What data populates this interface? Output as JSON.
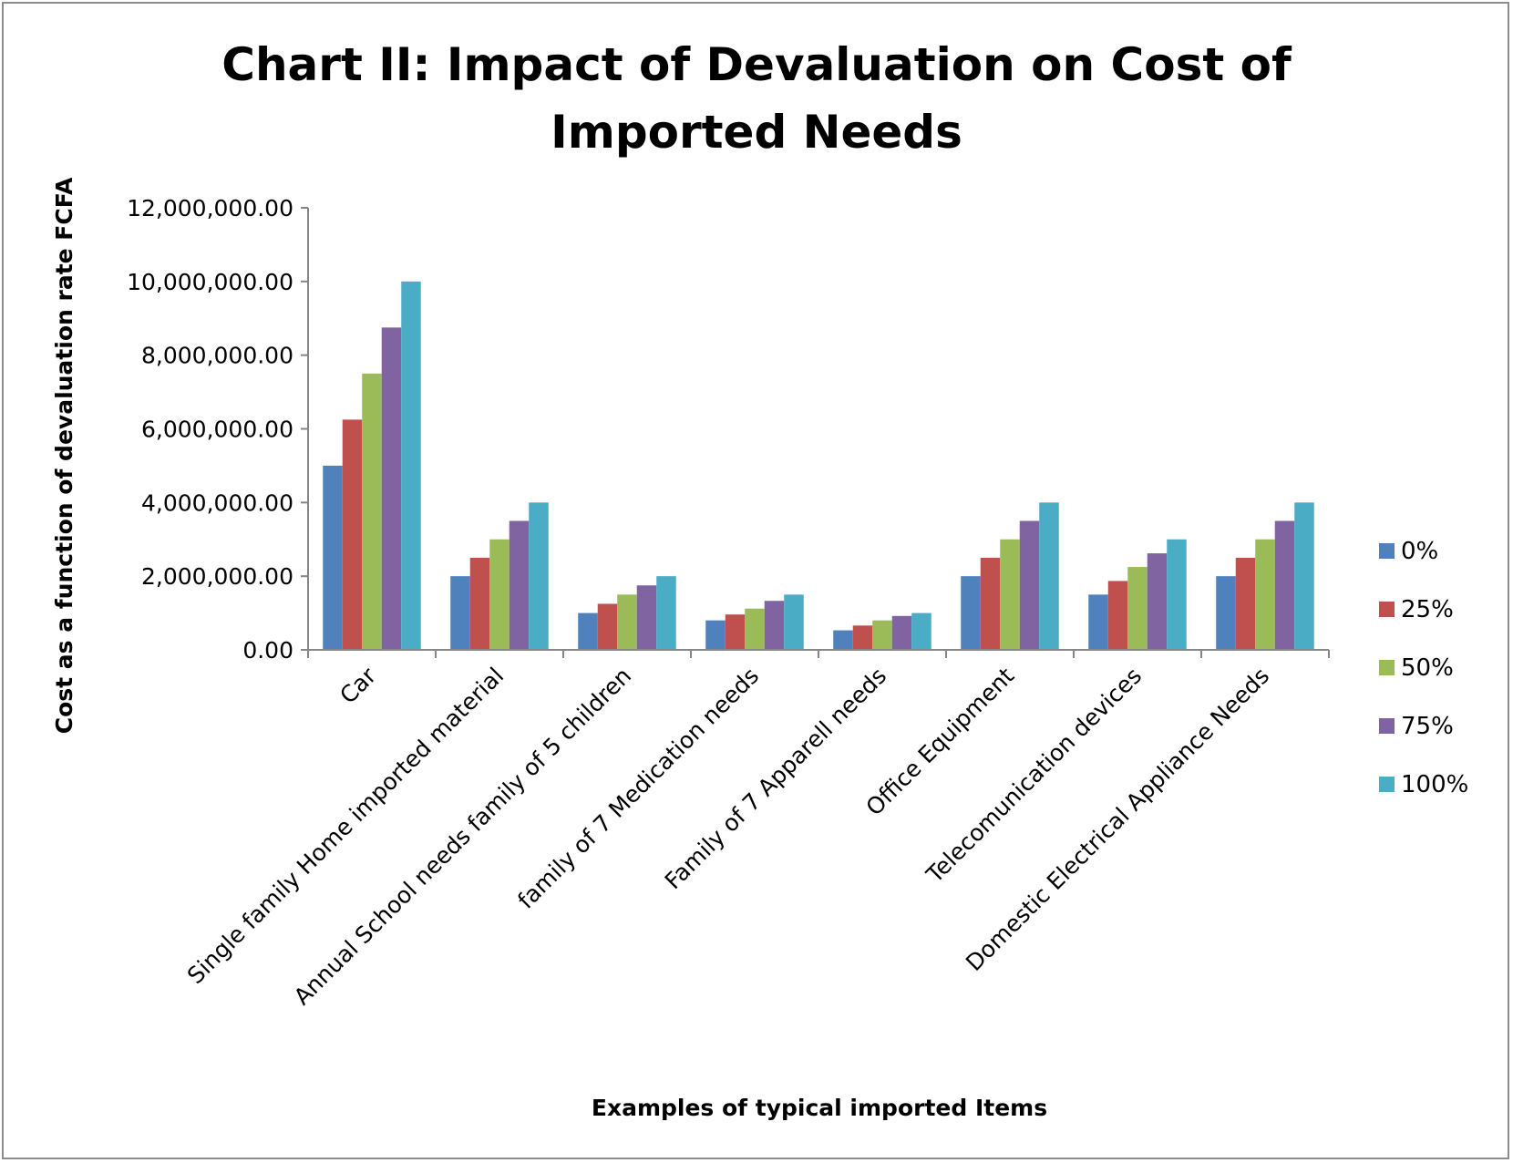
{
  "chart_data": {
    "type": "bar",
    "title_lines": [
      "Chart II: Impact of Devaluation on Cost of",
      "Imported Needs"
    ],
    "xlabel": "Examples of typical imported Items",
    "ylabel": "Cost as a function of devaluation rate FCFA",
    "ylim": [
      0,
      12000000
    ],
    "y_tick_values": [
      0,
      2000000,
      4000000,
      6000000,
      8000000,
      10000000,
      12000000
    ],
    "y_tick_labels": [
      "0.00",
      "2,000,000.00",
      "4,000,000.00",
      "6,000,000.00",
      "8,000,000.00",
      "10,000,000.00",
      "12,000,000.00"
    ],
    "grid": false,
    "legend_position": "right",
    "categories": [
      "Car",
      "Single family Home imported material",
      "Annual School needs family of 5 children",
      "family of 7 Medication needs",
      "Family of 7 Apparell needs",
      "Office Equipment",
      "Telecomunication devices",
      "Domestic Electrical Appliance Needs"
    ],
    "series": [
      {
        "name": "0%",
        "color": "#4f81bd",
        "values": [
          5000000,
          2000000,
          1000000,
          800000,
          530000,
          2000000,
          1500000,
          2000000
        ]
      },
      {
        "name": "25%",
        "color": "#c0504d",
        "values": [
          6250000,
          2500000,
          1250000,
          960000,
          660000,
          2500000,
          1870000,
          2500000
        ]
      },
      {
        "name": "50%",
        "color": "#9bbb59",
        "values": [
          7500000,
          3000000,
          1500000,
          1120000,
          800000,
          3000000,
          2250000,
          3000000
        ]
      },
      {
        "name": "75%",
        "color": "#8064a2",
        "values": [
          8750000,
          3500000,
          1750000,
          1330000,
          920000,
          3500000,
          2620000,
          3500000
        ]
      },
      {
        "name": "100%",
        "color": "#4bacc6",
        "values": [
          10000000,
          4000000,
          2000000,
          1500000,
          1000000,
          4000000,
          3000000,
          4000000
        ]
      }
    ]
  }
}
